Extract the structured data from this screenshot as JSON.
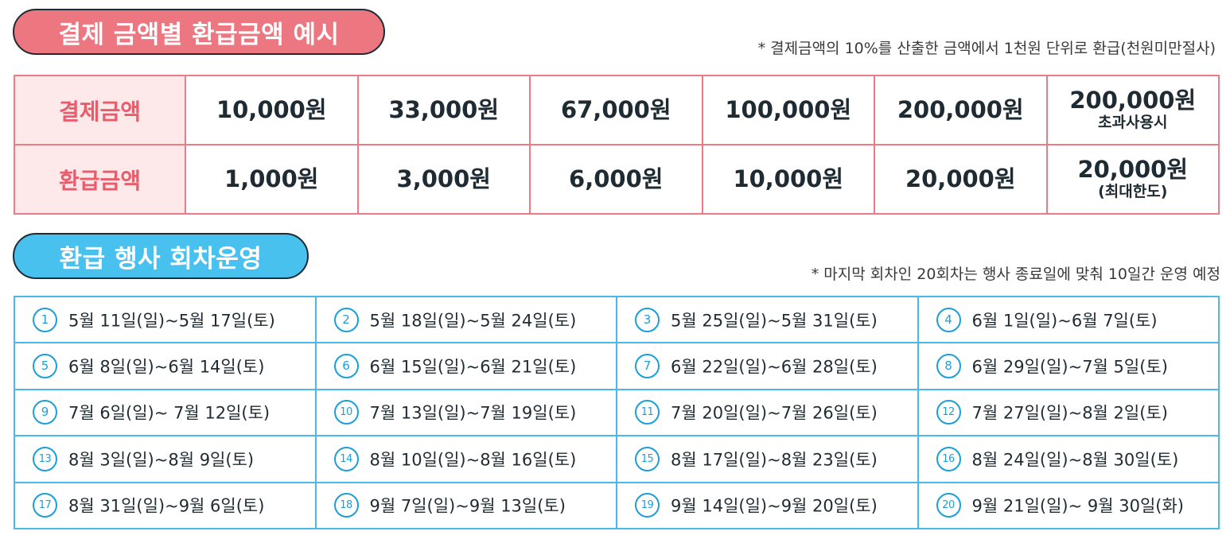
{
  "section1": {
    "title": "결제 금액별 환급금액 예시",
    "note": "* 결제금액의 10%를 산출한 금액에서 1천원 단위로 환급(천원미만절사)",
    "rows": [
      {
        "header": "결제금액",
        "cells": [
          {
            "main": "10,000원",
            "sub": ""
          },
          {
            "main": "33,000원",
            "sub": ""
          },
          {
            "main": "67,000원",
            "sub": ""
          },
          {
            "main": "100,000원",
            "sub": ""
          },
          {
            "main": "200,000원",
            "sub": ""
          },
          {
            "main": "200,000원",
            "sub": "초과사용시"
          }
        ]
      },
      {
        "header": "환급금액",
        "cells": [
          {
            "main": "1,000원",
            "sub": ""
          },
          {
            "main": "3,000원",
            "sub": ""
          },
          {
            "main": "6,000원",
            "sub": ""
          },
          {
            "main": "10,000원",
            "sub": ""
          },
          {
            "main": "20,000원",
            "sub": ""
          },
          {
            "main": "20,000원",
            "sub": "(최대한도)"
          }
        ]
      }
    ]
  },
  "section2": {
    "title": "환급 행사 회차운영",
    "note": "* 마지막 회차인 20회차는 행사 종료일에 맞춰 10일간 운영 예정",
    "rounds": [
      {
        "num": "1",
        "range": "5월 11일(일)~5월 17일(토)"
      },
      {
        "num": "2",
        "range": "5월 18일(일)~5월 24일(토)"
      },
      {
        "num": "3",
        "range": "5월 25일(일)~5월 31일(토)"
      },
      {
        "num": "4",
        "range": "6월 1일(일)~6월 7일(토)"
      },
      {
        "num": "5",
        "range": "6월 8일(일)~6월 14일(토)"
      },
      {
        "num": "6",
        "range": "6월 15일(일)~6월 21일(토)"
      },
      {
        "num": "7",
        "range": "6월 22일(일)~6월 28일(토)"
      },
      {
        "num": "8",
        "range": "6월 29일(일)~7월 5일(토)"
      },
      {
        "num": "9",
        "range": "7월 6일(일)~ 7월 12일(토)"
      },
      {
        "num": "10",
        "range": "7월 13일(일)~7월 19일(토)"
      },
      {
        "num": "11",
        "range": "7월 20일(일)~7월 26일(토)"
      },
      {
        "num": "12",
        "range": "7월 27일(일)~8월 2일(토)"
      },
      {
        "num": "13",
        "range": "8월 3일(일)~8월 9일(토)"
      },
      {
        "num": "14",
        "range": "8월 10일(일)~8월 16일(토)"
      },
      {
        "num": "15",
        "range": "8월 17일(일)~8월 23일(토)"
      },
      {
        "num": "16",
        "range": "8월 24일(일)~8월 30일(토)"
      },
      {
        "num": "17",
        "range": "8월 31일(일)~9월 6일(토)"
      },
      {
        "num": "18",
        "range": "9월 7일(일)~9월 13일(토)"
      },
      {
        "num": "19",
        "range": "9월 14일(일)~9월 20일(토)"
      },
      {
        "num": "20",
        "range": "9월 21일(일)~ 9월 30일(화)"
      }
    ]
  }
}
